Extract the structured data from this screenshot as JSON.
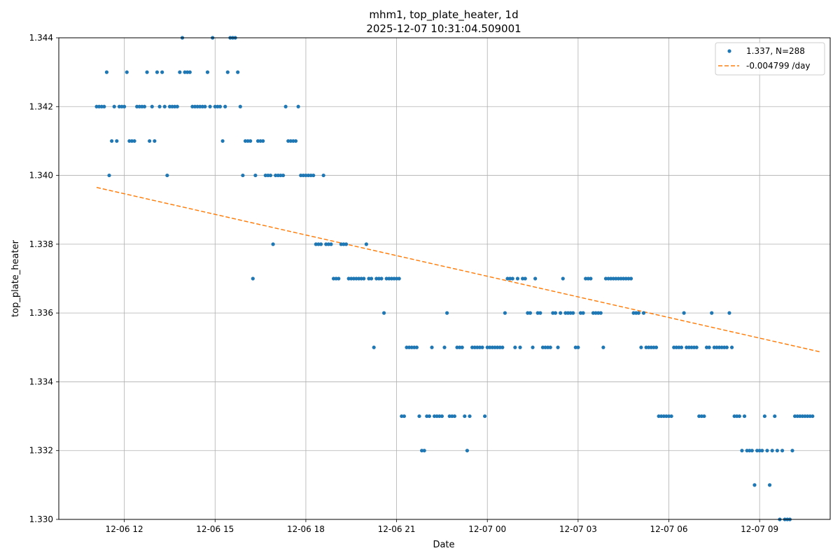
{
  "chart_data": {
    "type": "scatter",
    "title": "mhm1, top_plate_heater, 1d",
    "subtitle": "2025-12-07 10:31:04.509001",
    "xlabel": "Date",
    "ylabel": "top_plate_heater",
    "xlim": [
      "2025-12-06 09:50",
      "2025-12-07 11:20"
    ],
    "ylim": [
      1.33,
      1.344
    ],
    "grid": true,
    "legend_position": "top-right",
    "x_ticks": [
      {
        "value": "2025-12-06 12:00",
        "label": "12-06 12"
      },
      {
        "value": "2025-12-06 15:00",
        "label": "12-06 15"
      },
      {
        "value": "2025-12-06 18:00",
        "label": "12-06 18"
      },
      {
        "value": "2025-12-06 21:00",
        "label": "12-06 21"
      },
      {
        "value": "2025-12-07 00:00",
        "label": "12-07 00"
      },
      {
        "value": "2025-12-07 03:00",
        "label": "12-07 03"
      },
      {
        "value": "2025-12-07 06:00",
        "label": "12-07 06"
      },
      {
        "value": "2025-12-07 09:00",
        "label": "12-07 09"
      }
    ],
    "y_ticks": [
      "1.330",
      "1.332",
      "1.334",
      "1.336",
      "1.338",
      "1.340",
      "1.342",
      "1.344"
    ],
    "series": [
      {
        "name": "1.337, N=288",
        "kind": "scatter",
        "color": "#1f77b4",
        "start": "2025-12-06 11:05",
        "interval_minutes": 5,
        "values": [
          1.342,
          1.342,
          1.342,
          1.342,
          1.343,
          1.34,
          1.341,
          1.342,
          1.341,
          1.342,
          1.342,
          1.342,
          1.343,
          1.341,
          1.341,
          1.341,
          1.342,
          1.342,
          1.342,
          1.342,
          1.343,
          1.341,
          1.342,
          1.341,
          1.343,
          1.342,
          1.343,
          1.342,
          1.34,
          1.342,
          1.342,
          1.342,
          1.342,
          1.343,
          1.344,
          1.343,
          1.343,
          1.343,
          1.342,
          1.342,
          1.342,
          1.342,
          1.342,
          1.342,
          1.343,
          1.342,
          1.344,
          1.342,
          1.342,
          1.342,
          1.341,
          1.342,
          1.343,
          1.344,
          1.344,
          1.344,
          1.343,
          1.342,
          1.34,
          1.341,
          1.341,
          1.341,
          1.337,
          1.34,
          1.341,
          1.341,
          1.341,
          1.34,
          1.34,
          1.34,
          1.338,
          1.34,
          1.34,
          1.34,
          1.34,
          1.342,
          1.341,
          1.341,
          1.341,
          1.341,
          1.342,
          1.34,
          1.34,
          1.34,
          1.34,
          1.34,
          1.34,
          1.338,
          1.338,
          1.338,
          1.34,
          1.338,
          1.338,
          1.338,
          1.337,
          1.337,
          1.337,
          1.338,
          1.338,
          1.338,
          1.337,
          1.337,
          1.337,
          1.337,
          1.337,
          1.337,
          1.337,
          1.338,
          1.337,
          1.337,
          1.335,
          1.337,
          1.337,
          1.337,
          1.336,
          1.337,
          1.337,
          1.337,
          1.337,
          1.337,
          1.337,
          1.333,
          1.333,
          1.335,
          1.335,
          1.335,
          1.335,
          1.335,
          1.333,
          1.332,
          1.332,
          1.333,
          1.333,
          1.335,
          1.333,
          1.333,
          1.333,
          1.333,
          1.335,
          1.336,
          1.333,
          1.333,
          1.333,
          1.335,
          1.335,
          1.335,
          1.333,
          1.332,
          1.333,
          1.335,
          1.335,
          1.335,
          1.335,
          1.335,
          1.333,
          1.335,
          1.335,
          1.335,
          1.335,
          1.335,
          1.335,
          1.335,
          1.336,
          1.337,
          1.337,
          1.337,
          1.335,
          1.337,
          1.335,
          1.337,
          1.337,
          1.336,
          1.336,
          1.335,
          1.337,
          1.336,
          1.336,
          1.335,
          1.335,
          1.335,
          1.335,
          1.336,
          1.336,
          1.335,
          1.336,
          1.337,
          1.336,
          1.336,
          1.336,
          1.336,
          1.335,
          1.335,
          1.336,
          1.336,
          1.337,
          1.337,
          1.337,
          1.336,
          1.336,
          1.336,
          1.336,
          1.335,
          1.337,
          1.337,
          1.337,
          1.337,
          1.337,
          1.337,
          1.337,
          1.337,
          1.337,
          1.337,
          1.337,
          1.336,
          1.336,
          1.336,
          1.335,
          1.336,
          1.335,
          1.335,
          1.335,
          1.335,
          1.335,
          1.333,
          1.333,
          1.333,
          1.333,
          1.333,
          1.333,
          1.335,
          1.335,
          1.335,
          1.335,
          1.336,
          1.335,
          1.335,
          1.335,
          1.335,
          1.335,
          1.333,
          1.333,
          1.333,
          1.335,
          1.335,
          1.336,
          1.335,
          1.335,
          1.335,
          1.335,
          1.335,
          1.335,
          1.336,
          1.335,
          1.333,
          1.333,
          1.333,
          1.332,
          1.333,
          1.332,
          1.332,
          1.332,
          1.331,
          1.332,
          1.332,
          1.332,
          1.333,
          1.332,
          1.331,
          1.332,
          1.333,
          1.332,
          1.33,
          1.332,
          1.33,
          1.33,
          1.33,
          1.332,
          1.333,
          1.333,
          1.333,
          1.333,
          1.333,
          1.333,
          1.333,
          1.333
        ]
      },
      {
        "name": "-0.004799 /day",
        "kind": "line",
        "color": "#ff7f0e",
        "x": [
          "2025-12-06 11:05",
          "2025-12-07 11:00"
        ],
        "y": [
          1.33965,
          1.33487
        ]
      }
    ]
  }
}
